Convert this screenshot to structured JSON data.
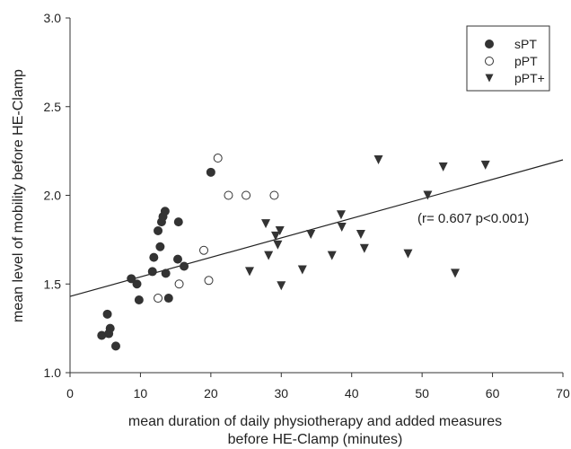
{
  "chart_data": {
    "type": "scatter",
    "title": "",
    "xlabel_lines": [
      "mean duration of daily physiotherapy and added measures",
      "before HE-Clamp (minutes)"
    ],
    "ylabel": "mean level of mobility before HE-Clamp",
    "xlim": [
      0,
      70
    ],
    "ylim": [
      1.0,
      3.0
    ],
    "x_ticks": [
      0,
      10,
      20,
      30,
      40,
      50,
      60,
      70
    ],
    "y_ticks": [
      1.0,
      1.5,
      2.0,
      2.5,
      3.0
    ],
    "x_tick_labels": [
      "0",
      "10",
      "20",
      "30",
      "40",
      "50",
      "60",
      "70"
    ],
    "y_tick_labels": [
      "1.0",
      "1.5",
      "2.0",
      "2.5",
      "3.0"
    ],
    "grid": false,
    "legend_position": "top-right",
    "annotation": "(r= 0.607 p<0.001)",
    "regression_line": {
      "x": [
        0,
        70
      ],
      "y": [
        1.43,
        2.2
      ]
    },
    "series": [
      {
        "name": "sPT",
        "marker": "filled-circle",
        "color": "#333333",
        "points": [
          [
            4.5,
            1.21
          ],
          [
            5.3,
            1.33
          ],
          [
            5.5,
            1.22
          ],
          [
            5.7,
            1.25
          ],
          [
            6.5,
            1.15
          ],
          [
            8.7,
            1.53
          ],
          [
            9.5,
            1.5
          ],
          [
            9.8,
            1.41
          ],
          [
            11.7,
            1.57
          ],
          [
            11.9,
            1.65
          ],
          [
            12.5,
            1.8
          ],
          [
            12.8,
            1.71
          ],
          [
            13.0,
            1.85
          ],
          [
            13.2,
            1.88
          ],
          [
            13.5,
            1.91
          ],
          [
            13.6,
            1.56
          ],
          [
            14.0,
            1.42
          ],
          [
            15.3,
            1.64
          ],
          [
            15.4,
            1.85
          ],
          [
            16.2,
            1.6
          ],
          [
            20.0,
            2.13
          ]
        ]
      },
      {
        "name": "pPT",
        "marker": "open-circle",
        "color": "#333333",
        "points": [
          [
            12.5,
            1.42
          ],
          [
            15.5,
            1.5
          ],
          [
            19.0,
            1.69
          ],
          [
            19.7,
            1.52
          ],
          [
            21.0,
            2.21
          ],
          [
            22.5,
            2.0
          ],
          [
            25.0,
            2.0
          ],
          [
            29.0,
            2.0
          ]
        ]
      },
      {
        "name": "pPT+",
        "marker": "filled-triangle-down",
        "color": "#333333",
        "points": [
          [
            25.5,
            1.57
          ],
          [
            27.8,
            1.84
          ],
          [
            28.2,
            1.66
          ],
          [
            29.2,
            1.77
          ],
          [
            29.5,
            1.72
          ],
          [
            29.8,
            1.8
          ],
          [
            30.0,
            1.49
          ],
          [
            33.0,
            1.58
          ],
          [
            34.2,
            1.78
          ],
          [
            37.2,
            1.66
          ],
          [
            38.5,
            1.89
          ],
          [
            38.6,
            1.82
          ],
          [
            41.3,
            1.78
          ],
          [
            41.8,
            1.7
          ],
          [
            43.8,
            2.2
          ],
          [
            48.0,
            1.67
          ],
          [
            50.8,
            2.0
          ],
          [
            53.0,
            2.16
          ],
          [
            54.7,
            1.56
          ],
          [
            59.0,
            2.17
          ]
        ]
      }
    ]
  }
}
